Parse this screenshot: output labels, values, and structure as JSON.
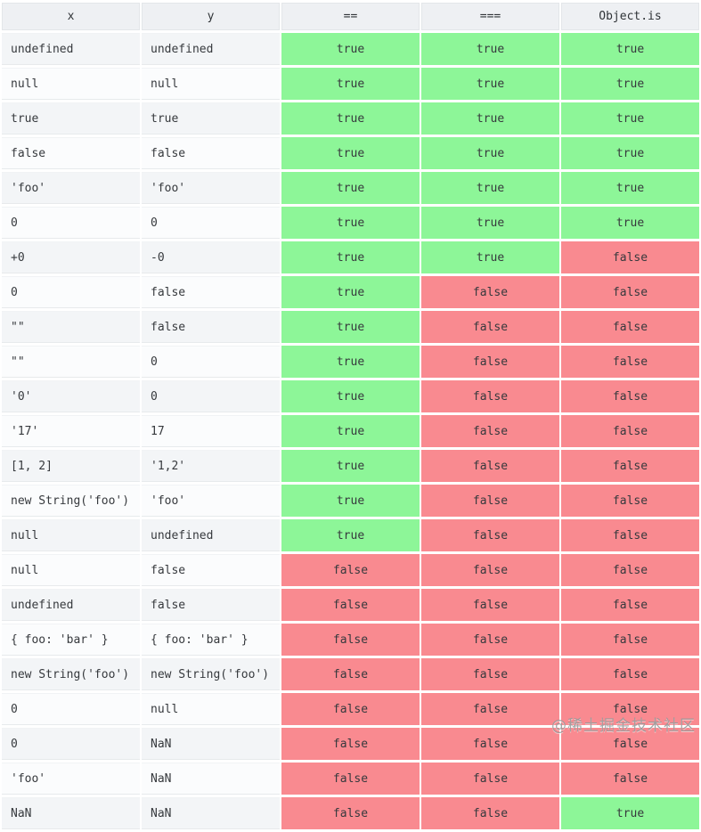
{
  "page": {
    "watermark": "@稀土掘金技术社区"
  },
  "colors": {
    "true_bg": "#8df698",
    "false_bg": "#f98a90",
    "header_bg": "#eef0f3",
    "row_odd_bg": "#f3f5f7",
    "row_even_bg": "#fbfcfd",
    "text": "#36393d"
  },
  "table": {
    "headers": [
      "x",
      "y",
      "==",
      "===",
      "Object.is"
    ],
    "rows": [
      {
        "x": "undefined",
        "y": "undefined",
        "eq": "true",
        "seq": "true",
        "ois": "true"
      },
      {
        "x": "null",
        "y": "null",
        "eq": "true",
        "seq": "true",
        "ois": "true"
      },
      {
        "x": "true",
        "y": "true",
        "eq": "true",
        "seq": "true",
        "ois": "true"
      },
      {
        "x": "false",
        "y": "false",
        "eq": "true",
        "seq": "true",
        "ois": "true"
      },
      {
        "x": "'foo'",
        "y": "'foo'",
        "eq": "true",
        "seq": "true",
        "ois": "true"
      },
      {
        "x": "0",
        "y": "0",
        "eq": "true",
        "seq": "true",
        "ois": "true"
      },
      {
        "x": "+0",
        "y": "-0",
        "eq": "true",
        "seq": "true",
        "ois": "false"
      },
      {
        "x": "0",
        "y": "false",
        "eq": "true",
        "seq": "false",
        "ois": "false"
      },
      {
        "x": "\"\"",
        "y": "false",
        "eq": "true",
        "seq": "false",
        "ois": "false"
      },
      {
        "x": "\"\"",
        "y": "0",
        "eq": "true",
        "seq": "false",
        "ois": "false"
      },
      {
        "x": "'0'",
        "y": "0",
        "eq": "true",
        "seq": "false",
        "ois": "false"
      },
      {
        "x": "'17'",
        "y": "17",
        "eq": "true",
        "seq": "false",
        "ois": "false"
      },
      {
        "x": "[1, 2]",
        "y": "'1,2'",
        "eq": "true",
        "seq": "false",
        "ois": "false"
      },
      {
        "x": "new String('foo')",
        "y": "'foo'",
        "eq": "true",
        "seq": "false",
        "ois": "false"
      },
      {
        "x": "null",
        "y": "undefined",
        "eq": "true",
        "seq": "false",
        "ois": "false"
      },
      {
        "x": "null",
        "y": "false",
        "eq": "false",
        "seq": "false",
        "ois": "false"
      },
      {
        "x": "undefined",
        "y": "false",
        "eq": "false",
        "seq": "false",
        "ois": "false"
      },
      {
        "x": "{ foo: 'bar' }",
        "y": "{ foo: 'bar' }",
        "eq": "false",
        "seq": "false",
        "ois": "false"
      },
      {
        "x": "new String('foo')",
        "y": "new String('foo')",
        "eq": "false",
        "seq": "false",
        "ois": "false"
      },
      {
        "x": "0",
        "y": "null",
        "eq": "false",
        "seq": "false",
        "ois": "false"
      },
      {
        "x": "0",
        "y": "NaN",
        "eq": "false",
        "seq": "false",
        "ois": "false"
      },
      {
        "x": "'foo'",
        "y": "NaN",
        "eq": "false",
        "seq": "false",
        "ois": "false"
      },
      {
        "x": "NaN",
        "y": "NaN",
        "eq": "false",
        "seq": "false",
        "ois": "true"
      }
    ]
  }
}
